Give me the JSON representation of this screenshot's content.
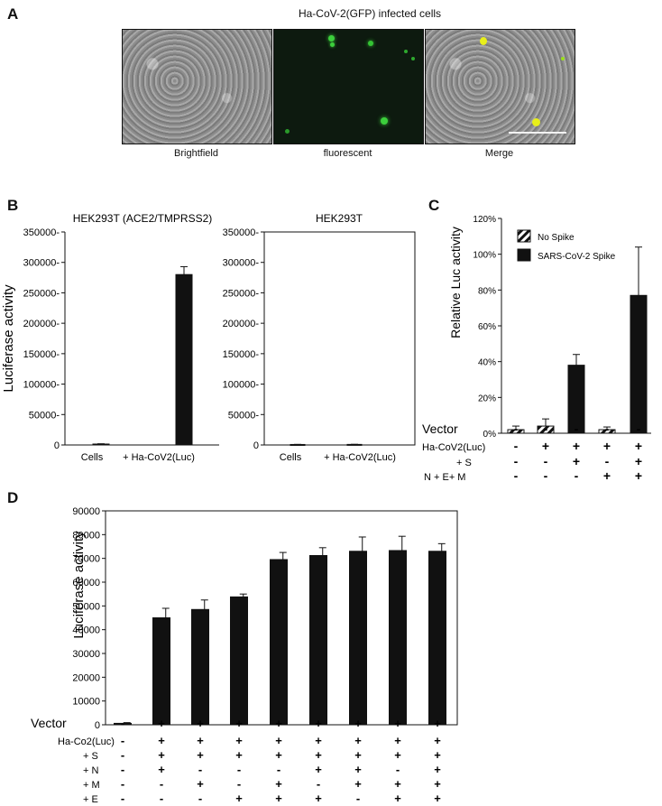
{
  "panel_a": {
    "letter": "A",
    "title": "Ha-CoV-2(GFP) infected cells",
    "captions": [
      "Brightfield",
      "fluorescent",
      "Merge"
    ]
  },
  "panel_b": {
    "letter": "B",
    "ylabel": "Luciferase activity"
  },
  "panel_c": {
    "letter": "C",
    "ylabel": "Relative Luc activity",
    "legend": [
      "No Spike",
      "SARS-CoV-2 Spike"
    ],
    "row_labels": [
      "Vector",
      "Ha-CoV2(Luc)",
      "+ S",
      "N + E+ M"
    ],
    "rows": [
      [
        "-",
        "-",
        "-",
        "-",
        "-"
      ],
      [
        "-",
        "+",
        "+",
        "+",
        "+"
      ],
      [
        "-",
        "-",
        "+",
        "-",
        "+"
      ],
      [
        "-",
        "-",
        "-",
        "+",
        "+"
      ]
    ]
  },
  "panel_d": {
    "letter": "D",
    "ylabel": "Luciferase activity",
    "row_labels": [
      "Vector",
      "Ha-Co2(Luc)",
      "+ S",
      "+ N",
      "+ M",
      "+ E"
    ],
    "rows": [
      [
        "-",
        "+",
        "+",
        "+",
        "+",
        "+",
        "+",
        "+",
        "+"
      ],
      [
        "-",
        "+",
        "+",
        "+",
        "+",
        "+",
        "+",
        "+",
        "+"
      ],
      [
        "-",
        "+",
        "+",
        "+",
        "+",
        "+",
        "+",
        "+",
        "+"
      ],
      [
        "-",
        "+",
        "-",
        "-",
        "-",
        "+",
        "+",
        "-",
        "+"
      ],
      [
        "-",
        "-",
        "+",
        "-",
        "+",
        "-",
        "+",
        "+",
        "+"
      ],
      [
        "-",
        "-",
        "-",
        "+",
        "+",
        "+",
        "-",
        "+",
        "+"
      ]
    ]
  },
  "chart_data": [
    {
      "id": "B1",
      "type": "bar",
      "title": "HEK293T (ACE2/TMPRSS2)",
      "categories": [
        "Cells",
        "+ Ha-CoV2(Luc)"
      ],
      "values": [
        1500,
        280000
      ],
      "errors": [
        500,
        13000
      ],
      "ylim": [
        0,
        350000
      ],
      "yticks": [
        0,
        50000,
        100000,
        150000,
        200000,
        250000,
        300000,
        350000
      ],
      "ytick_labels": [
        "0",
        "50000-",
        "100000-",
        "150000-",
        "200000-",
        "250000-",
        "300000-",
        "350000-"
      ],
      "ylabel": "Luciferase activity"
    },
    {
      "id": "B2",
      "type": "bar",
      "title": "HEK293T",
      "categories": [
        "Cells",
        "+ Ha-CoV2(Luc)"
      ],
      "values": [
        800,
        900
      ],
      "errors": [
        200,
        200
      ],
      "ylim": [
        0,
        350000
      ],
      "yticks": [
        0,
        50000,
        100000,
        150000,
        200000,
        250000,
        300000,
        350000
      ],
      "ytick_labels": [
        "0",
        "50000-",
        "100000-",
        "150000-",
        "200000-",
        "250000-",
        "300000-",
        "350000-"
      ]
    },
    {
      "id": "C",
      "type": "bar",
      "ylabel": "Relative Luc activity",
      "values": [
        2,
        4,
        38,
        2,
        77
      ],
      "errors": [
        2,
        4,
        6,
        1.5,
        27
      ],
      "hatched": [
        true,
        true,
        false,
        true,
        false
      ],
      "ylim": [
        0,
        120
      ],
      "yticks": [
        0,
        20,
        40,
        60,
        80,
        100,
        120
      ],
      "ytick_labels": [
        "0%",
        "20%",
        "40%",
        "60%",
        "80%",
        "100%",
        "120%"
      ],
      "legend": [
        "No Spike",
        "SARS-CoV-2 Spike"
      ]
    },
    {
      "id": "D",
      "type": "bar",
      "ylabel": "Luciferase activity",
      "values": [
        600,
        45000,
        48500,
        53800,
        69500,
        71200,
        73000,
        73300,
        73000
      ],
      "errors": [
        300,
        4000,
        4000,
        1200,
        3000,
        3300,
        6000,
        6000,
        3200
      ],
      "ylim": [
        0,
        90000
      ],
      "yticks": [
        0,
        10000,
        20000,
        30000,
        40000,
        50000,
        60000,
        70000,
        80000,
        90000
      ],
      "ytick_labels": [
        "0",
        "10000",
        "20000",
        "30000",
        "40000",
        "50000",
        "60000",
        "70000",
        "80000",
        "90000"
      ]
    }
  ]
}
